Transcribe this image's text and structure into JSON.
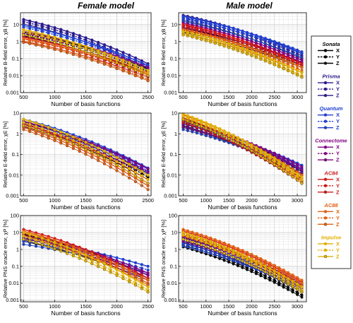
{
  "figure": {
    "column_titles": [
      "Female model",
      "Male model"
    ]
  },
  "colors": {
    "Sonata": "#000000",
    "Prisma": "#2a1a8c",
    "Quantum": "#2040d0",
    "Connectome": "#800080",
    "AC84": "#d01818",
    "AC88": "#e06010",
    "Impulse": "#e0b000"
  },
  "legend": {
    "groups": [
      {
        "name": "Sonata",
        "color": "#000000",
        "entries": [
          "X",
          "Y",
          "Z"
        ]
      },
      {
        "name": "Prisma",
        "color": "#2a1a8c",
        "entries": [
          "X",
          "Y",
          "Z"
        ]
      },
      {
        "name": "Quantum",
        "color": "#2040d0",
        "entries": [
          "X",
          "Y",
          "Z"
        ]
      },
      {
        "name": "Connectome",
        "color": "#800080",
        "entries": [
          "X",
          "Y",
          "Z"
        ]
      },
      {
        "name": "AC84",
        "color": "#d01818",
        "entries": [
          "X",
          "Y",
          "Z"
        ]
      },
      {
        "name": "AC88",
        "color": "#e06010",
        "entries": [
          "X",
          "Y",
          "Z"
        ]
      },
      {
        "name": "Impulse",
        "color": "#e0b000",
        "entries": [
          "X",
          "Y",
          "Z"
        ]
      }
    ]
  },
  "chart_data": [
    {
      "type": "line",
      "title": "Female model",
      "xlabel": "Number of basis functions",
      "ylabel": "Relative B-field error, χB [%]",
      "xlim": [
        450,
        2550
      ],
      "ylim": [
        0.001,
        50
      ],
      "yscale": "log",
      "grid": true,
      "xticks": [
        500,
        1000,
        1500,
        2000,
        2500
      ],
      "yticks": [
        0.001,
        0.01,
        0.1,
        1,
        10
      ],
      "yticklabels": [
        "0.001",
        "0.01",
        "0.1",
        "1",
        "10"
      ],
      "x_start": 500,
      "x_end": 2500,
      "x_step": 100,
      "series": [
        {
          "name": "Sonata X",
          "start": 3.5,
          "end": 0.025
        },
        {
          "name": "Sonata Y",
          "start": 2.8,
          "end": 0.018
        },
        {
          "name": "Sonata Z",
          "start": 2.2,
          "end": 0.012
        },
        {
          "name": "Prisma X",
          "start": 20,
          "end": 0.05
        },
        {
          "name": "Prisma Y",
          "start": 15,
          "end": 0.035
        },
        {
          "name": "Prisma Z",
          "start": 11,
          "end": 0.028
        },
        {
          "name": "Quantum X",
          "start": 9,
          "end": 0.04
        },
        {
          "name": "Quantum Y",
          "start": 7,
          "end": 0.03
        },
        {
          "name": "Quantum Z",
          "start": 5,
          "end": 0.022
        },
        {
          "name": "Connectome X",
          "start": 4,
          "end": 0.03
        },
        {
          "name": "Connectome Y",
          "start": 3,
          "end": 0.02
        },
        {
          "name": "Connectome Z",
          "start": 2,
          "end": 0.015
        },
        {
          "name": "AC84 X",
          "start": 1.8,
          "end": 0.015
        },
        {
          "name": "AC84 Y",
          "start": 1.4,
          "end": 0.01
        },
        {
          "name": "AC84 Z",
          "start": 1.0,
          "end": 0.008
        },
        {
          "name": "AC88 X",
          "start": 1.5,
          "end": 0.012
        },
        {
          "name": "AC88 Y",
          "start": 1.1,
          "end": 0.006
        },
        {
          "name": "AC88 Z",
          "start": 0.9,
          "end": 0.005
        },
        {
          "name": "Impulse X",
          "start": 5,
          "end": 0.02
        },
        {
          "name": "Impulse Y",
          "start": 3.8,
          "end": 0.014
        },
        {
          "name": "Impulse Z",
          "start": 2.5,
          "end": 0.01
        }
      ]
    },
    {
      "type": "line",
      "title": "Male model",
      "xlabel": "Number of basis functions",
      "ylabel": "Relative B-field error, χB [%]",
      "xlim": [
        400,
        3200
      ],
      "ylim": [
        0.001,
        50
      ],
      "yscale": "log",
      "grid": true,
      "xticks": [
        500,
        1000,
        1500,
        2000,
        2500,
        3000
      ],
      "yticks": [
        0.001,
        0.01,
        0.1,
        1,
        10
      ],
      "yticklabels": [
        "0.001",
        "0.01",
        "0.1",
        "1",
        "10"
      ],
      "x_start": 500,
      "x_end": 3100,
      "x_step": 100,
      "series": [
        {
          "name": "Sonata X",
          "start": 6,
          "end": 0.06
        },
        {
          "name": "Sonata Y",
          "start": 4.5,
          "end": 0.04
        },
        {
          "name": "Sonata Z",
          "start": 3.5,
          "end": 0.03
        },
        {
          "name": "Prisma X",
          "start": 35,
          "end": 0.2
        },
        {
          "name": "Prisma Y",
          "start": 25,
          "end": 0.15
        },
        {
          "name": "Prisma Z",
          "start": 18,
          "end": 0.1
        },
        {
          "name": "Quantum X",
          "start": 30,
          "end": 0.25
        },
        {
          "name": "Quantum Y",
          "start": 22,
          "end": 0.2
        },
        {
          "name": "Quantum Z",
          "start": 15,
          "end": 0.12
        },
        {
          "name": "Connectome X",
          "start": 12,
          "end": 0.08
        },
        {
          "name": "Connectome Y",
          "start": 9,
          "end": 0.06
        },
        {
          "name": "Connectome Z",
          "start": 7,
          "end": 0.05
        },
        {
          "name": "AC84 X",
          "start": 10,
          "end": 0.05
        },
        {
          "name": "AC84 Y",
          "start": 8,
          "end": 0.04
        },
        {
          "name": "AC84 Z",
          "start": 6,
          "end": 0.03
        },
        {
          "name": "AC88 X",
          "start": 5,
          "end": 0.03
        },
        {
          "name": "AC88 Y",
          "start": 4,
          "end": 0.02
        },
        {
          "name": "AC88 Z",
          "start": 3,
          "end": 0.015
        },
        {
          "name": "Impulse X",
          "start": 4,
          "end": 0.015
        },
        {
          "name": "Impulse Y",
          "start": 3,
          "end": 0.01
        },
        {
          "name": "Impulse Z",
          "start": 2.5,
          "end": 0.008
        }
      ]
    },
    {
      "type": "line",
      "title": "Female model",
      "xlabel": "Number of basis functions",
      "ylabel": "Relative E-field error, χE [%]",
      "xlim": [
        450,
        2550
      ],
      "ylim": [
        0.001,
        10
      ],
      "yscale": "log",
      "grid": true,
      "xticks": [
        500,
        1000,
        1500,
        2000,
        2500
      ],
      "yticks": [
        0.001,
        0.01,
        0.1,
        1,
        10
      ],
      "yticklabels": [
        "0.001",
        "0.01",
        "0.1",
        "1",
        "10"
      ],
      "x_start": 500,
      "x_end": 2500,
      "x_step": 100,
      "series": [
        {
          "name": "Sonata X",
          "start": 4,
          "end": 0.012
        },
        {
          "name": "Sonata Y",
          "start": 3,
          "end": 0.008
        },
        {
          "name": "Sonata Z",
          "start": 2.2,
          "end": 0.006
        },
        {
          "name": "Prisma X",
          "start": 3.5,
          "end": 0.02
        },
        {
          "name": "Prisma Y",
          "start": 2.8,
          "end": 0.015
        },
        {
          "name": "Prisma Z",
          "start": 2.2,
          "end": 0.01
        },
        {
          "name": "Quantum X",
          "start": 5,
          "end": 0.022
        },
        {
          "name": "Quantum Y",
          "start": 4,
          "end": 0.016
        },
        {
          "name": "Quantum Z",
          "start": 3,
          "end": 0.012
        },
        {
          "name": "Connectome X",
          "start": 4,
          "end": 0.02
        },
        {
          "name": "Connectome Y",
          "start": 3,
          "end": 0.014
        },
        {
          "name": "Connectome Z",
          "start": 2.4,
          "end": 0.01
        },
        {
          "name": "AC84 X",
          "start": 3,
          "end": 0.006
        },
        {
          "name": "AC84 Y",
          "start": 2.4,
          "end": 0.004
        },
        {
          "name": "AC84 Z",
          "start": 2,
          "end": 0.003
        },
        {
          "name": "AC88 X",
          "start": 2.5,
          "end": 0.004
        },
        {
          "name": "AC88 Y",
          "start": 2,
          "end": 0.003
        },
        {
          "name": "AC88 Z",
          "start": 1.6,
          "end": 0.002
        },
        {
          "name": "Impulse X",
          "start": 5,
          "end": 0.01
        },
        {
          "name": "Impulse Y",
          "start": 3.5,
          "end": 0.006
        },
        {
          "name": "Impulse Z",
          "start": 2.5,
          "end": 0.004
        }
      ]
    },
    {
      "type": "line",
      "title": "Male model",
      "xlabel": "Number of basis functions",
      "ylabel": "Relative E-field error, χE [%]",
      "xlim": [
        400,
        3200
      ],
      "ylim": [
        0.001,
        10
      ],
      "yscale": "log",
      "grid": true,
      "xticks": [
        500,
        1000,
        1500,
        2000,
        2500,
        3000
      ],
      "yticks": [
        0.001,
        0.01,
        0.1,
        1,
        10
      ],
      "yticklabels": [
        "0.001",
        "0.01",
        "0.1",
        "1",
        "10"
      ],
      "x_start": 500,
      "x_end": 3100,
      "x_step": 100,
      "series": [
        {
          "name": "Sonata X",
          "start": 5,
          "end": 0.015
        },
        {
          "name": "Sonata Y",
          "start": 3.5,
          "end": 0.01
        },
        {
          "name": "Sonata Z",
          "start": 2.5,
          "end": 0.007
        },
        {
          "name": "Prisma X",
          "start": 4,
          "end": 0.02
        },
        {
          "name": "Prisma Y",
          "start": 3,
          "end": 0.015
        },
        {
          "name": "Prisma Z",
          "start": 2,
          "end": 0.01
        },
        {
          "name": "Quantum X",
          "start": 3,
          "end": 0.03
        },
        {
          "name": "Quantum Y",
          "start": 2.2,
          "end": 0.02
        },
        {
          "name": "Quantum Z",
          "start": 1.6,
          "end": 0.012
        },
        {
          "name": "Connectome X",
          "start": 4,
          "end": 0.025
        },
        {
          "name": "Connectome Y",
          "start": 3,
          "end": 0.018
        },
        {
          "name": "Connectome Z",
          "start": 2.2,
          "end": 0.012
        },
        {
          "name": "AC84 X",
          "start": 6,
          "end": 0.006
        },
        {
          "name": "AC84 Y",
          "start": 4.5,
          "end": 0.005
        },
        {
          "name": "AC84 Z",
          "start": 3.5,
          "end": 0.004
        },
        {
          "name": "AC88 X",
          "start": 8,
          "end": 0.01
        },
        {
          "name": "AC88 Y",
          "start": 6,
          "end": 0.007
        },
        {
          "name": "AC88 Z",
          "start": 4.5,
          "end": 0.005
        },
        {
          "name": "Impulse X",
          "start": 9,
          "end": 0.008
        },
        {
          "name": "Impulse Y",
          "start": 7,
          "end": 0.006
        },
        {
          "name": "Impulse Z",
          "start": 5,
          "end": 0.004
        }
      ]
    },
    {
      "type": "line",
      "title": "Female model",
      "xlabel": "Number of basis functions",
      "ylabel": "Relative PNS oracle error, χP [%]",
      "xlim": [
        450,
        2550
      ],
      "ylim": [
        0.0008,
        100
      ],
      "yscale": "log",
      "grid": true,
      "xticks": [
        500,
        1000,
        1500,
        2000,
        2500
      ],
      "yticks": [
        0.001,
        0.01,
        0.1,
        1,
        10,
        100
      ],
      "yticklabels": [
        "0.001",
        "0.01",
        "0.1",
        "1",
        "10",
        "100"
      ],
      "x_start": 500,
      "x_end": 2500,
      "x_step": 100,
      "series": [
        {
          "name": "Sonata X",
          "start": 8,
          "end": 0.03
        },
        {
          "name": "Sonata Y",
          "start": 5,
          "end": 0.02
        },
        {
          "name": "Sonata Z",
          "start": 3,
          "end": 0.015
        },
        {
          "name": "Prisma X",
          "start": 7,
          "end": 0.03
        },
        {
          "name": "Prisma Y",
          "start": 5,
          "end": 0.02
        },
        {
          "name": "Prisma Z",
          "start": 3.5,
          "end": 0.015
        },
        {
          "name": "Quantum X",
          "start": 4,
          "end": 0.1
        },
        {
          "name": "Quantum Y",
          "start": 3,
          "end": 0.06
        },
        {
          "name": "Quantum Z",
          "start": 2,
          "end": 0.04
        },
        {
          "name": "Connectome X",
          "start": 9,
          "end": 0.04
        },
        {
          "name": "Connectome Y",
          "start": 6,
          "end": 0.03
        },
        {
          "name": "Connectome Z",
          "start": 4.5,
          "end": 0.02
        },
        {
          "name": "AC84 X",
          "start": 15,
          "end": 0.02
        },
        {
          "name": "AC84 Y",
          "start": 10,
          "end": 0.015
        },
        {
          "name": "AC84 Z",
          "start": 7,
          "end": 0.01
        },
        {
          "name": "AC88 X",
          "start": 12,
          "end": 0.015
        },
        {
          "name": "AC88 Y",
          "start": 9,
          "end": 0.01
        },
        {
          "name": "AC88 Z",
          "start": 6,
          "end": 0.008
        },
        {
          "name": "Impulse X",
          "start": 10,
          "end": 0.006
        },
        {
          "name": "Impulse Y",
          "start": 6,
          "end": 0.004
        },
        {
          "name": "Impulse Z",
          "start": 4,
          "end": 0.003
        }
      ]
    },
    {
      "type": "line",
      "title": "Male model",
      "xlabel": "Number of basis functions",
      "ylabel": "Relative PNS oracle error, χP [%]",
      "xlim": [
        400,
        3200
      ],
      "ylim": [
        0.0008,
        100
      ],
      "yscale": "log",
      "grid": true,
      "xticks": [
        500,
        1000,
        1500,
        2000,
        2500,
        3000
      ],
      "yticks": [
        0.001,
        0.01,
        0.1,
        1,
        10,
        100
      ],
      "yticklabels": [
        "0.001",
        "0.01",
        "0.1",
        "1",
        "10",
        "100"
      ],
      "x_start": 500,
      "x_end": 3100,
      "x_step": 100,
      "series": [
        {
          "name": "Sonata X",
          "start": 2.5,
          "end": 0.003
        },
        {
          "name": "Sonata Y",
          "start": 1.8,
          "end": 0.002
        },
        {
          "name": "Sonata Z",
          "start": 1.4,
          "end": 0.0015
        },
        {
          "name": "Prisma X",
          "start": 5,
          "end": 0.006
        },
        {
          "name": "Prisma Y",
          "start": 3.5,
          "end": 0.004
        },
        {
          "name": "Prisma Z",
          "start": 2.5,
          "end": 0.003
        },
        {
          "name": "Quantum X",
          "start": 3,
          "end": 0.008
        },
        {
          "name": "Quantum Y",
          "start": 2.2,
          "end": 0.006
        },
        {
          "name": "Quantum Z",
          "start": 1.6,
          "end": 0.004
        },
        {
          "name": "Connectome X",
          "start": 6,
          "end": 0.01
        },
        {
          "name": "Connectome Y",
          "start": 4.5,
          "end": 0.007
        },
        {
          "name": "Connectome Z",
          "start": 3,
          "end": 0.005
        },
        {
          "name": "AC84 X",
          "start": 12,
          "end": 0.012
        },
        {
          "name": "AC84 Y",
          "start": 8,
          "end": 0.008
        },
        {
          "name": "AC84 Z",
          "start": 6,
          "end": 0.006
        },
        {
          "name": "AC88 X",
          "start": 15,
          "end": 0.015
        },
        {
          "name": "AC88 Y",
          "start": 10,
          "end": 0.01
        },
        {
          "name": "AC88 Z",
          "start": 7,
          "end": 0.007
        },
        {
          "name": "Impulse X",
          "start": 10,
          "end": 0.006
        },
        {
          "name": "Impulse Y",
          "start": 7,
          "end": 0.004
        },
        {
          "name": "Impulse Z",
          "start": 4,
          "end": 0.003
        }
      ]
    }
  ]
}
